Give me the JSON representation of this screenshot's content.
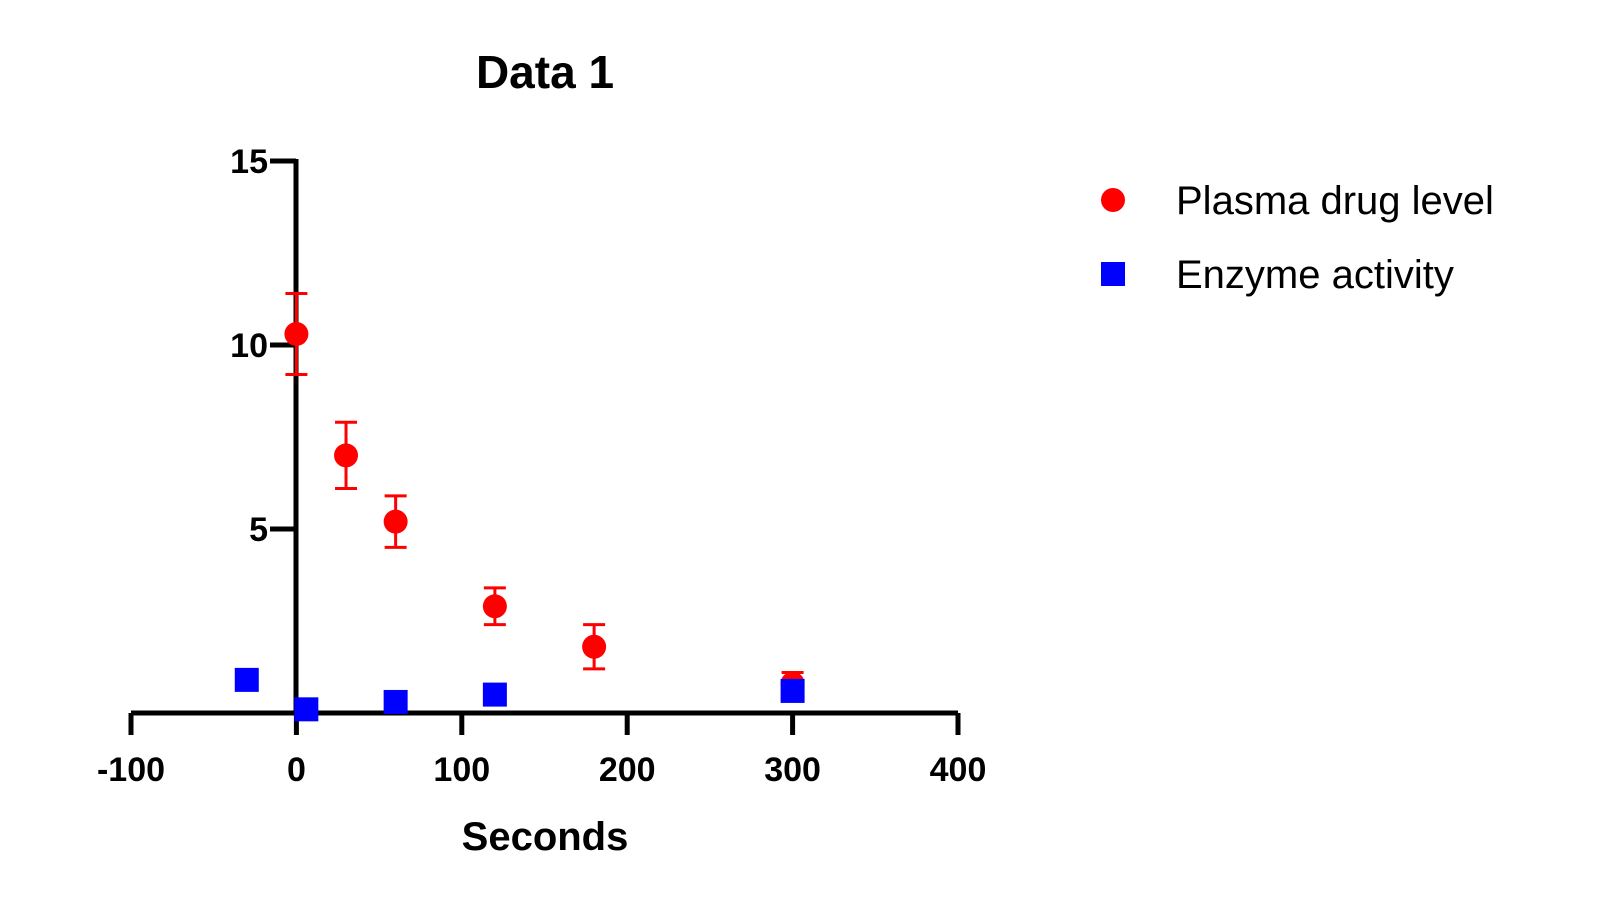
{
  "chart_data": {
    "type": "scatter",
    "title": "Data 1",
    "xlabel": "Seconds",
    "ylabel": "",
    "xlim": [
      -100,
      400
    ],
    "ylim": [
      0,
      15
    ],
    "xticks": [
      -100,
      0,
      100,
      200,
      300,
      400
    ],
    "yticks": [
      5,
      10,
      15
    ],
    "legend_position": "right",
    "grid": false,
    "series": [
      {
        "name": "Plasma drug level",
        "marker": "circle",
        "color": "#ff0000",
        "points": [
          {
            "x": 0,
            "y": 10.3,
            "err": 1.1
          },
          {
            "x": 30,
            "y": 7.0,
            "err": 0.9
          },
          {
            "x": 60,
            "y": 5.2,
            "err": 0.7
          },
          {
            "x": 120,
            "y": 2.9,
            "err": 0.5
          },
          {
            "x": 180,
            "y": 1.8,
            "err": 0.6
          },
          {
            "x": 300,
            "y": 0.8,
            "err": 0.3
          }
        ]
      },
      {
        "name": "Enzyme activity",
        "marker": "square",
        "color": "#0000ff",
        "points": [
          {
            "x": -30,
            "y": 0.9
          },
          {
            "x": 6,
            "y": 0.1
          },
          {
            "x": 60,
            "y": 0.3
          },
          {
            "x": 120,
            "y": 0.5
          },
          {
            "x": 300,
            "y": 0.6
          }
        ]
      }
    ]
  }
}
